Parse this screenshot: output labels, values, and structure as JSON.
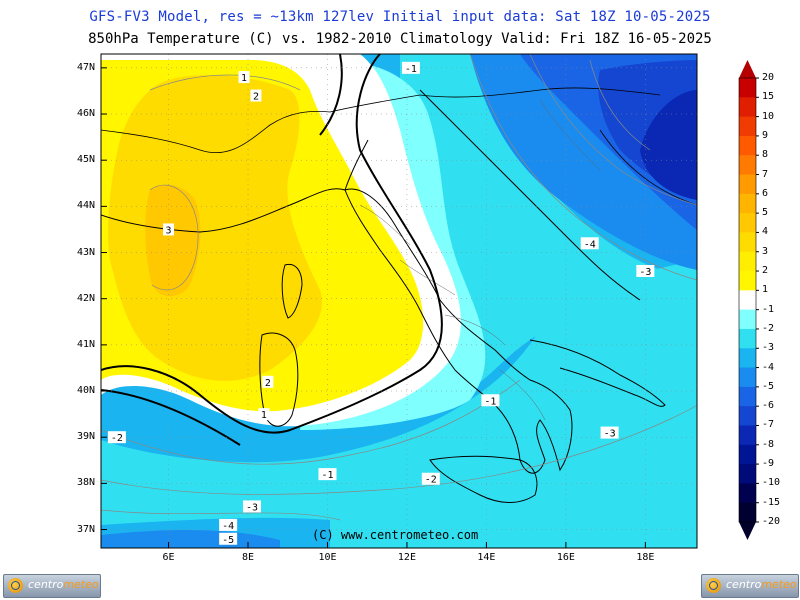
{
  "header": {
    "line1": "GFS-FV3 Model, res = ~13km 127lev   Initial input data: Sat 18Z 10-05-2025",
    "line2": "850hPa Temperature (C) vs. 1982-2010 Climatology  Valid: Fri 18Z 16-05-2025"
  },
  "axes": {
    "lat_labels": [
      "47N",
      "46N",
      "45N",
      "44N",
      "43N",
      "42N",
      "41N",
      "40N",
      "39N",
      "38N",
      "37N"
    ],
    "lon_labels": [
      "6E",
      "8E",
      "10E",
      "12E",
      "14E",
      "16E",
      "18E"
    ]
  },
  "colorbar": {
    "labels": [
      "20",
      "15",
      "10",
      "9",
      "8",
      "7",
      "6",
      "5",
      "4",
      "3",
      "2",
      "1",
      "-1",
      "-2",
      "-3",
      "-4",
      "-5",
      "-6",
      "-7",
      "-8",
      "-9",
      "-10",
      "-15",
      "-20"
    ],
    "colors": [
      "#c80000",
      "#e01e00",
      "#f03c00",
      "#ff5a00",
      "#ff7a00",
      "#ff9a00",
      "#ffb400",
      "#ffc800",
      "#ffdc00",
      "#ffee00",
      "#fff600",
      "#ffffff",
      "#80ffff",
      "#30e0f0",
      "#1ab4f0",
      "#1a8cf0",
      "#1a64e6",
      "#1446d2",
      "#0a28b4",
      "#001496",
      "#000a78",
      "#000050",
      "#000030"
    ],
    "cap_top": "#b40000",
    "cap_bottom": "#000028"
  },
  "contour_labels": [
    {
      "text": "1",
      "lon": 7.9,
      "lat": 46.8
    },
    {
      "text": "2",
      "lon": 8.2,
      "lat": 46.4
    },
    {
      "text": "3",
      "lon": 6.0,
      "lat": 43.5
    },
    {
      "text": "2",
      "lon": 8.5,
      "lat": 40.2
    },
    {
      "text": "1",
      "lon": 8.4,
      "lat": 39.5
    },
    {
      "text": "-1",
      "lon": 12.1,
      "lat": 47.0
    },
    {
      "text": "-1",
      "lon": 14.1,
      "lat": 39.8
    },
    {
      "text": "-1",
      "lon": 10.0,
      "lat": 38.2
    },
    {
      "text": "-2",
      "lon": 4.7,
      "lat": 39.0
    },
    {
      "text": "-2",
      "lon": 12.6,
      "lat": 38.1
    },
    {
      "text": "-3",
      "lon": 8.1,
      "lat": 37.5
    },
    {
      "text": "-3",
      "lon": 17.1,
      "lat": 39.1
    },
    {
      "text": "-3",
      "lon": 18.0,
      "lat": 42.6
    },
    {
      "text": "-4",
      "lon": 7.5,
      "lat": 37.1
    },
    {
      "text": "-4",
      "lon": 16.6,
      "lat": 43.2
    },
    {
      "text": "-5",
      "lon": 7.5,
      "lat": 36.8
    }
  ],
  "credit": "(C) www.centrometeo.com",
  "logo": {
    "part1": "centro",
    "part2": "meteo"
  }
}
